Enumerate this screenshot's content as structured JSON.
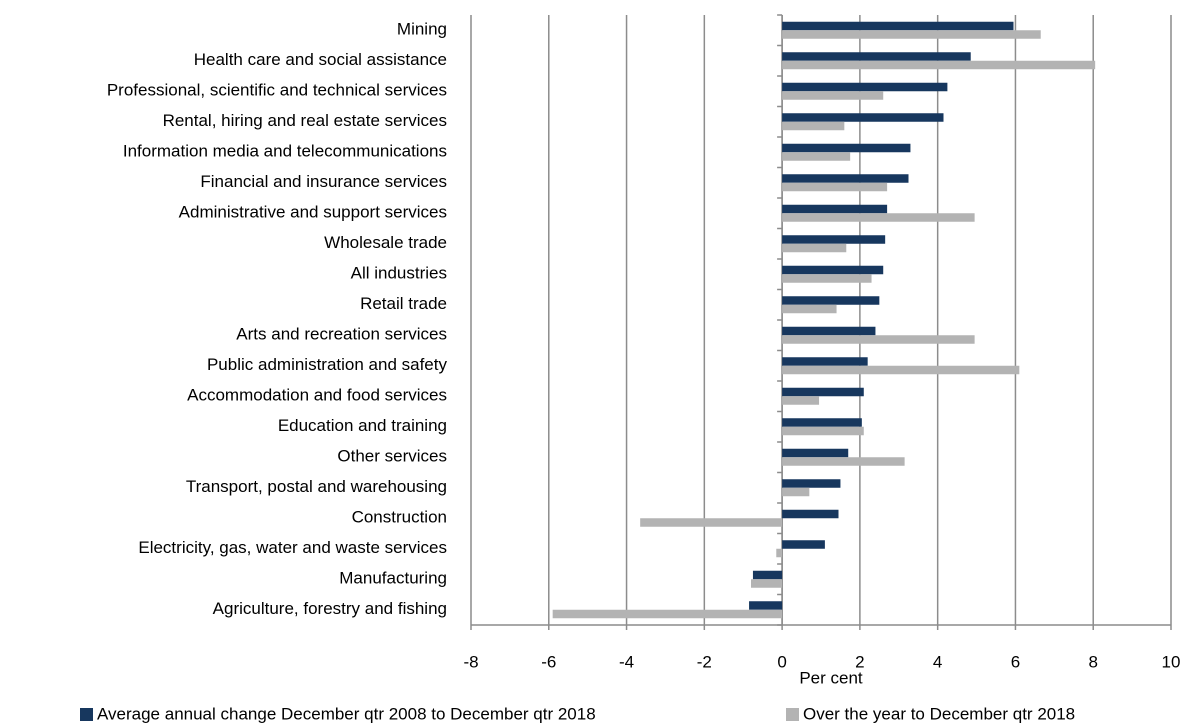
{
  "chart_data": {
    "type": "hbar",
    "categories": [
      "Mining",
      "Health care and social assistance",
      "Professional, scientific and technical services",
      "Rental, hiring and real estate services",
      "Information media and telecommunications",
      "Financial and insurance services",
      "Administrative and support services",
      "Wholesale trade",
      "All industries",
      "Retail trade",
      "Arts and recreation services",
      "Public administration and safety",
      "Accommodation and food services",
      "Education and training",
      "Other services",
      "Transport, postal and warehousing",
      "Construction",
      "Electricity, gas, water and waste services",
      "Manufacturing",
      "Agriculture, forestry and fishing"
    ],
    "series": [
      {
        "name": "Average annual change December qtr 2008 to December qtr 2018",
        "color": "#17375e",
        "values": [
          5.95,
          4.85,
          4.25,
          4.15,
          3.3,
          3.25,
          2.7,
          2.65,
          2.6,
          2.5,
          2.4,
          2.2,
          2.1,
          2.05,
          1.7,
          1.5,
          1.45,
          1.1,
          -0.75,
          -0.85
        ]
      },
      {
        "name": "Over the year to December qtr 2018",
        "color": "#b3b3b3",
        "values": [
          6.65,
          8.05,
          2.6,
          1.6,
          1.75,
          2.7,
          4.95,
          1.65,
          2.3,
          1.4,
          4.95,
          6.1,
          0.95,
          2.1,
          3.15,
          0.7,
          -3.65,
          -0.15,
          -0.8,
          -5.9
        ]
      }
    ],
    "x_label": "Per cent",
    "xlim": [
      -8,
      10
    ],
    "xticks": [
      -8,
      -6,
      -4,
      -2,
      0,
      2,
      4,
      6,
      8,
      10
    ],
    "grid": true,
    "legend": "bottom"
  }
}
